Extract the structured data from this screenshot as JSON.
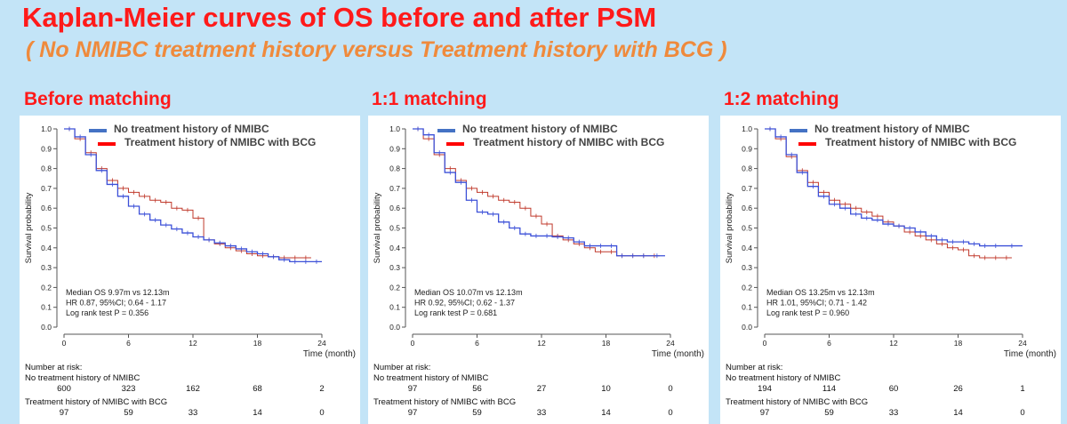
{
  "title": "Kaplan-Meier curves of OS before and after PSM",
  "subtitle": "( No NMIBC treatment history versus Treatment history with BCG )",
  "colors": {
    "series1": "#3c50d8",
    "series2": "#c0392b",
    "legend1": "#4472c4",
    "legend2": "#ff0000"
  },
  "risk_header": "Number at risk:",
  "chart_data": [
    {
      "type": "line",
      "heading": "Before matching",
      "ylabel": "Survival probability",
      "xlabel": "Time (month)",
      "xlim": [
        0,
        24
      ],
      "ylim": [
        0,
        1
      ],
      "xticks": [
        "0",
        "6",
        "12",
        "18",
        "24"
      ],
      "yticks": [
        "0.0",
        "0.1",
        "0.2",
        "0.3",
        "0.4",
        "0.5",
        "0.6",
        "0.7",
        "0.8",
        "0.9",
        "1.0"
      ],
      "legend": "top",
      "stats": [
        "Median OS 9.97m vs 12.13m",
        "HR 0.87, 95%CI; 0.64 - 1.17",
        "Log rank test P = 0.356"
      ],
      "series": [
        {
          "name": "No treatment history of NMIBC",
          "x": [
            0,
            1,
            2,
            3,
            4,
            5,
            6,
            7,
            8,
            9,
            10,
            11,
            12,
            13,
            14,
            15,
            16,
            17,
            18,
            19,
            20,
            21,
            22,
            23,
            24
          ],
          "y": [
            1.0,
            0.96,
            0.87,
            0.79,
            0.72,
            0.66,
            0.61,
            0.57,
            0.54,
            0.515,
            0.495,
            0.475,
            0.455,
            0.44,
            0.425,
            0.41,
            0.395,
            0.38,
            0.37,
            0.355,
            0.34,
            0.33,
            0.33,
            0.33,
            0.33
          ],
          "risk": [
            "600",
            "323",
            "162",
            "68",
            "2"
          ]
        },
        {
          "name": "Treatment history of NMIBC with BCG",
          "x": [
            0,
            1,
            2,
            3,
            4,
            5,
            6,
            7,
            8,
            9,
            10,
            11,
            12,
            13,
            14,
            15,
            16,
            17,
            18,
            19,
            20,
            21,
            22,
            23
          ],
          "y": [
            1.0,
            0.95,
            0.88,
            0.8,
            0.74,
            0.7,
            0.68,
            0.66,
            0.64,
            0.63,
            0.6,
            0.59,
            0.55,
            0.44,
            0.42,
            0.4,
            0.385,
            0.37,
            0.36,
            0.355,
            0.35,
            0.35,
            0.35,
            0.35
          ],
          "risk": [
            "97",
            "59",
            "33",
            "14",
            "0"
          ]
        }
      ]
    },
    {
      "type": "line",
      "heading": "1:1 matching",
      "ylabel": "Survival probability",
      "xlabel": "Time (month)",
      "xlim": [
        0,
        24
      ],
      "ylim": [
        0,
        1
      ],
      "xticks": [
        "0",
        "6",
        "12",
        "18",
        "24"
      ],
      "yticks": [
        "0.0",
        "0.1",
        "0.2",
        "0.3",
        "0.4",
        "0.5",
        "0.6",
        "0.7",
        "0.8",
        "0.9",
        "1.0"
      ],
      "legend": "top",
      "stats": [
        "Median OS 10.07m vs 12.13m",
        "HR 0.92, 95%CI; 0.62 - 1.37",
        "Log rank test P = 0.681"
      ],
      "series": [
        {
          "name": "No treatment history of NMIBC",
          "x": [
            0,
            1,
            2,
            3,
            4,
            5,
            6,
            7,
            8,
            9,
            10,
            11,
            12,
            13,
            14,
            15,
            16,
            17,
            18,
            19,
            20,
            21,
            22,
            23.5
          ],
          "y": [
            1.0,
            0.97,
            0.88,
            0.78,
            0.73,
            0.64,
            0.58,
            0.57,
            0.53,
            0.5,
            0.47,
            0.46,
            0.46,
            0.455,
            0.45,
            0.43,
            0.41,
            0.41,
            0.41,
            0.36,
            0.36,
            0.36,
            0.36,
            0.36
          ],
          "risk": [
            "97",
            "56",
            "27",
            "10",
            "0"
          ]
        },
        {
          "name": "Treatment history of NMIBC with BCG",
          "x": [
            0,
            1,
            2,
            3,
            4,
            5,
            6,
            7,
            8,
            9,
            10,
            11,
            12,
            13,
            14,
            15,
            16,
            17,
            18,
            19,
            20,
            21,
            22,
            23
          ],
          "y": [
            1.0,
            0.95,
            0.87,
            0.8,
            0.74,
            0.7,
            0.68,
            0.66,
            0.64,
            0.63,
            0.6,
            0.56,
            0.52,
            0.46,
            0.44,
            0.42,
            0.4,
            0.38,
            0.38,
            0.36,
            0.36,
            0.36,
            0.36,
            0.36
          ],
          "risk": [
            "97",
            "59",
            "33",
            "14",
            "0"
          ]
        }
      ]
    },
    {
      "type": "line",
      "heading": "1:2 matching",
      "ylabel": "Survival probability",
      "xlabel": "Time (month)",
      "xlim": [
        0,
        24
      ],
      "ylim": [
        0,
        1
      ],
      "xticks": [
        "0",
        "6",
        "12",
        "18",
        "24"
      ],
      "yticks": [
        "0.0",
        "0.1",
        "0.2",
        "0.3",
        "0.4",
        "0.5",
        "0.6",
        "0.7",
        "0.8",
        "0.9",
        "1.0"
      ],
      "legend": "top",
      "stats": [
        "Median OS 13.25m vs 12.13m",
        "HR 1.01, 95%CI; 0.71 - 1.42",
        "Log rank test P = 0.960"
      ],
      "series": [
        {
          "name": "No treatment history of NMIBC",
          "x": [
            0,
            1,
            2,
            3,
            4,
            5,
            6,
            7,
            8,
            9,
            10,
            11,
            12,
            13,
            14,
            15,
            16,
            17,
            18,
            19,
            20,
            21,
            22,
            24
          ],
          "y": [
            1.0,
            0.96,
            0.87,
            0.78,
            0.71,
            0.66,
            0.62,
            0.6,
            0.57,
            0.55,
            0.54,
            0.52,
            0.51,
            0.5,
            0.48,
            0.46,
            0.44,
            0.43,
            0.43,
            0.42,
            0.41,
            0.41,
            0.41,
            0.41
          ],
          "risk": [
            "194",
            "114",
            "60",
            "26",
            "1"
          ]
        },
        {
          "name": "Treatment history of NMIBC with BCG",
          "x": [
            0,
            1,
            2,
            3,
            4,
            5,
            6,
            7,
            8,
            9,
            10,
            11,
            12,
            13,
            14,
            15,
            16,
            17,
            18,
            19,
            20,
            21,
            22,
            23
          ],
          "y": [
            1.0,
            0.95,
            0.86,
            0.79,
            0.73,
            0.68,
            0.64,
            0.62,
            0.6,
            0.58,
            0.56,
            0.53,
            0.51,
            0.48,
            0.46,
            0.44,
            0.42,
            0.4,
            0.39,
            0.36,
            0.35,
            0.35,
            0.35,
            0.35
          ],
          "risk": [
            "97",
            "59",
            "33",
            "14",
            "0"
          ]
        }
      ]
    }
  ]
}
